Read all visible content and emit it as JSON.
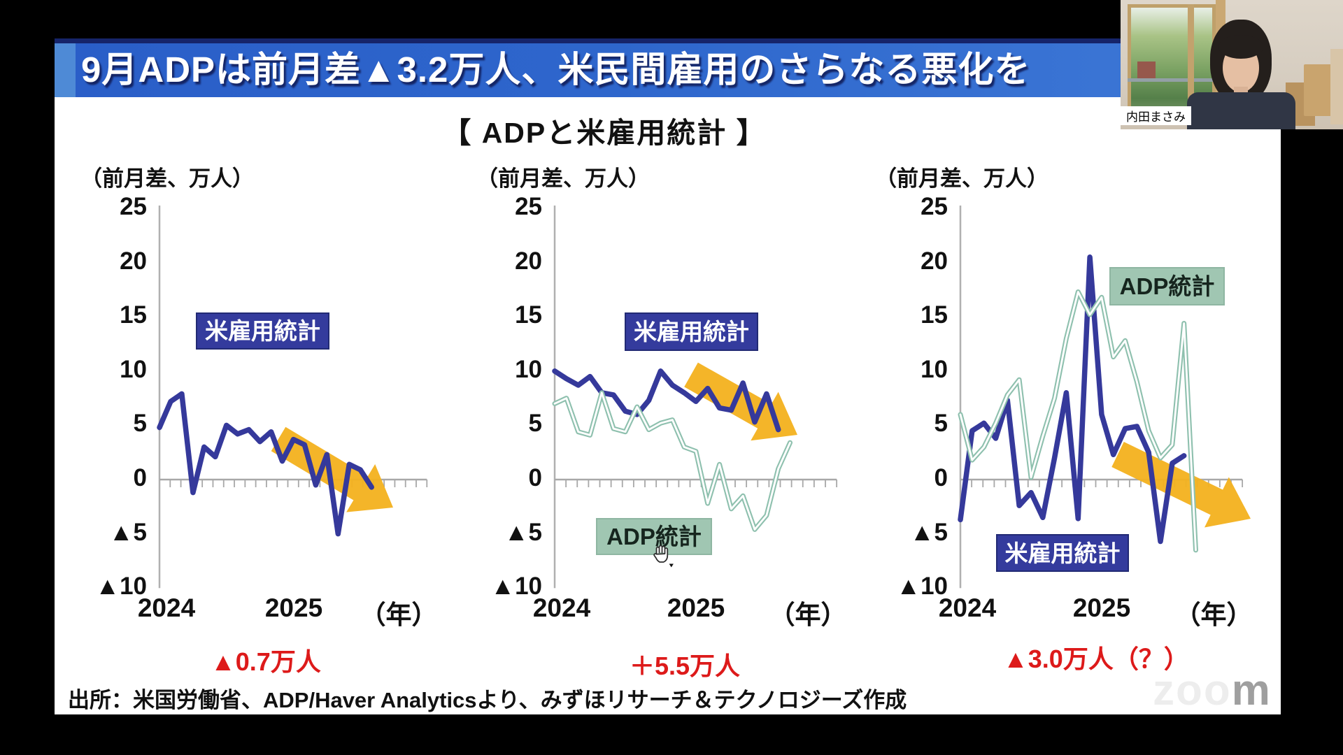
{
  "banner": {
    "title": "9月ADPは前月差▲3.2万人、米民間雇用のさらなる悪化を"
  },
  "heading": "【 ADPと米雇用統計 】",
  "source": "出所：米国労働省、ADP/Haver Analyticsより、みずほリサーチ＆テクノロジーズ作成",
  "webcam": {
    "participant_name": "内田まさみ"
  },
  "watermark": {
    "part1": "zoo",
    "part2": "m"
  },
  "colors": {
    "banner_blue": "#2e66cc",
    "payroll_line": "#35399b",
    "adp_line": "#8ec0ae",
    "arrow_yellow": "#f3b11d",
    "annotation_red": "#dd1a1a",
    "label_box_blue": "#343b9d",
    "label_box_green": "#a0c6b2"
  },
  "chart_data": [
    {
      "type": "line",
      "unit_label": "（前月差、万人）",
      "x_start": "2024-01",
      "x_interval": "month",
      "x_axis_labels": [
        "2024",
        "2025"
      ],
      "x_axis_suffix": "（年）",
      "ylim": [
        -10,
        25
      ],
      "y_tick_step": 5,
      "negative_prefix": "▲",
      "grid": false,
      "series": [
        {
          "name": "米雇用統計",
          "color": "#35399b",
          "style": "solid",
          "values": [
            4.8,
            7.2,
            7.9,
            -1.2,
            3.0,
            2.1,
            5.0,
            4.2,
            4.6,
            3.5,
            4.4,
            1.7,
            3.7,
            3.2,
            -0.5,
            2.3,
            -5.0,
            1.4,
            0.9,
            -0.7
          ]
        }
      ],
      "annotation": "▲0.7万人",
      "trend_arrow": "down-right"
    },
    {
      "type": "line",
      "unit_label": "（前月差、万人）",
      "x_start": "2024-01",
      "x_interval": "month",
      "x_axis_labels": [
        "2024",
        "2025"
      ],
      "x_axis_suffix": "（年）",
      "ylim": [
        -10,
        25
      ],
      "y_tick_step": 5,
      "negative_prefix": "▲",
      "grid": false,
      "series": [
        {
          "name": "米雇用統計",
          "color": "#35399b",
          "style": "solid",
          "values": [
            10.0,
            9.3,
            8.7,
            9.5,
            8.0,
            7.8,
            6.3,
            6.0,
            7.3,
            10.0,
            8.7,
            8.0,
            7.2,
            8.4,
            6.6,
            6.4,
            8.9,
            5.3,
            7.9,
            4.6
          ]
        },
        {
          "name": "ADP統計",
          "color": "#8ec0ae",
          "style": "outlined",
          "values": [
            7.0,
            7.5,
            4.4,
            4.1,
            8.0,
            4.7,
            4.4,
            6.7,
            4.6,
            5.2,
            5.5,
            3.0,
            2.6,
            -2.2,
            1.4,
            -2.7,
            -1.5,
            -4.6,
            -3.3,
            1.0,
            3.4
          ]
        }
      ],
      "annotation": "＋5.5万人",
      "trend_arrow": "down-right"
    },
    {
      "type": "line",
      "unit_label": "（前月差、万人）",
      "x_start": "2024-01",
      "x_interval": "month",
      "x_axis_labels": [
        "2024",
        "2025"
      ],
      "x_axis_suffix": "（年）",
      "ylim": [
        -10,
        25
      ],
      "y_tick_step": 5,
      "negative_prefix": "▲",
      "grid": false,
      "series": [
        {
          "name": "米雇用統計",
          "color": "#35399b",
          "style": "solid",
          "values": [
            -3.7,
            4.5,
            5.2,
            3.8,
            7.3,
            -2.4,
            -1.2,
            -3.5,
            2.0,
            8.0,
            -3.6,
            20.5,
            6.0,
            2.3,
            4.7,
            4.9,
            2.5,
            -5.7,
            1.5,
            2.2
          ]
        },
        {
          "name": "ADP統計",
          "color": "#8ec0ae",
          "style": "outlined",
          "values": [
            6.0,
            1.8,
            3.0,
            5.2,
            7.8,
            9.2,
            0.2,
            4.0,
            7.5,
            13.0,
            17.3,
            15.2,
            16.8,
            11.3,
            12.8,
            9.0,
            4.5,
            2.0,
            3.2,
            14.4,
            -6.5
          ]
        }
      ],
      "annotation": "▲3.0万人（？）",
      "trend_arrow": "down-right"
    }
  ]
}
